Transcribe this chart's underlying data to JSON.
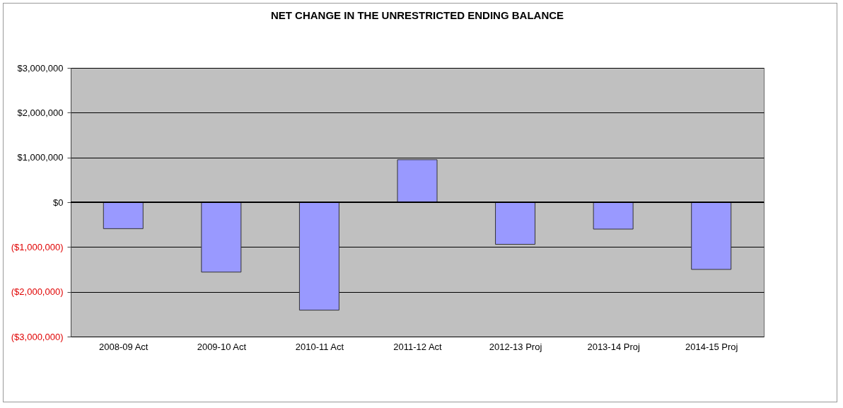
{
  "chart_data": {
    "type": "bar",
    "title": "NET CHANGE IN THE UNRESTRICTED ENDING BALANCE",
    "categories": [
      "2008-09 Act",
      "2009-10 Act",
      "2010-11 Act",
      "2011-12 Act",
      "2012-13 Proj",
      "2013-14 Proj",
      "2014-15 Proj"
    ],
    "values": [
      -590000,
      -1560000,
      -2410000,
      950000,
      -940000,
      -600000,
      -1500000
    ],
    "color": "#9999ff",
    "ylim": [
      -3000000,
      3000000
    ],
    "yticks": [
      {
        "value": -3000000,
        "label": "($3,000,000)"
      },
      {
        "value": -2000000,
        "label": "($2,000,000)"
      },
      {
        "value": -1000000,
        "label": "($1,000,000)"
      },
      {
        "value": 0,
        "label": "$0"
      },
      {
        "value": 1000000,
        "label": "$1,000,000"
      },
      {
        "value": 2000000,
        "label": "$2,000,000"
      },
      {
        "value": 3000000,
        "label": "$3,000,000"
      }
    ],
    "grid": "y"
  }
}
